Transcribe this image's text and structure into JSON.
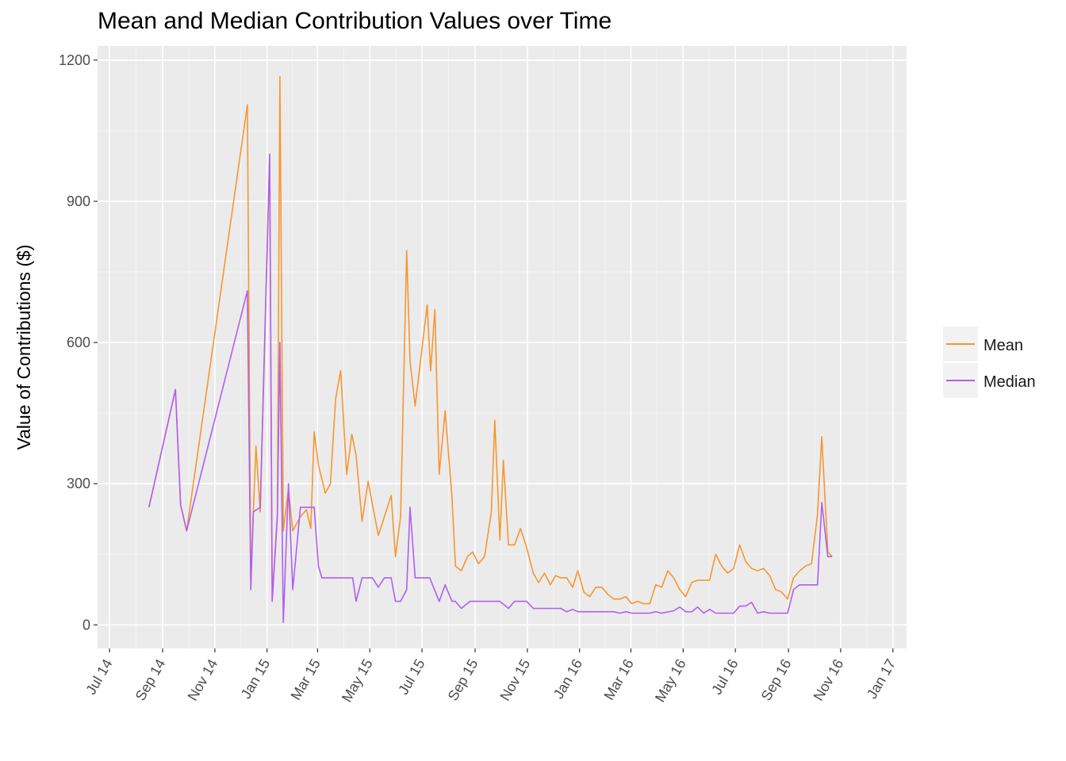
{
  "chart_data": {
    "type": "line",
    "title": "Mean and Median Contribution Values over Time",
    "xlabel": "",
    "ylabel": "Value of Contributions ($)",
    "xlim": [
      "2014-06-17",
      "2017-01-17"
    ],
    "ylim": [
      -50,
      1230
    ],
    "y_ticks": [
      0,
      300,
      600,
      900,
      1200
    ],
    "x_ticks": [
      {
        "date": "2014-07-01",
        "label": "Jul 14"
      },
      {
        "date": "2014-09-01",
        "label": "Sep 14"
      },
      {
        "date": "2014-11-01",
        "label": "Nov 14"
      },
      {
        "date": "2015-01-01",
        "label": "Jan 15"
      },
      {
        "date": "2015-03-01",
        "label": "Mar 15"
      },
      {
        "date": "2015-05-01",
        "label": "May 15"
      },
      {
        "date": "2015-07-01",
        "label": "Jul 15"
      },
      {
        "date": "2015-09-01",
        "label": "Sep 15"
      },
      {
        "date": "2015-11-01",
        "label": "Nov 15"
      },
      {
        "date": "2016-01-01",
        "label": "Jan 16"
      },
      {
        "date": "2016-03-01",
        "label": "Mar 16"
      },
      {
        "date": "2016-05-01",
        "label": "May 16"
      },
      {
        "date": "2016-07-01",
        "label": "Jul 16"
      },
      {
        "date": "2016-09-01",
        "label": "Sep 16"
      },
      {
        "date": "2016-11-01",
        "label": "Nov 16"
      },
      {
        "date": "2017-01-01",
        "label": "Jan 17"
      }
    ],
    "grid": true,
    "legend_position": "right",
    "series": [
      {
        "name": "Mean",
        "color": "#F8962F",
        "points": [
          [
            "2014-08-16",
            250
          ],
          [
            "2014-09-16",
            500
          ],
          [
            "2014-09-22",
            255
          ],
          [
            "2014-09-29",
            200
          ],
          [
            "2014-12-09",
            1105
          ],
          [
            "2014-12-13",
            100
          ],
          [
            "2014-12-16",
            240
          ],
          [
            "2014-12-19",
            380
          ],
          [
            "2014-12-24",
            240
          ],
          [
            "2015-01-04",
            1000
          ],
          [
            "2015-01-07",
            55
          ],
          [
            "2015-01-13",
            235
          ],
          [
            "2015-01-16",
            1165
          ],
          [
            "2015-01-20",
            200
          ],
          [
            "2015-01-26",
            290
          ],
          [
            "2015-01-31",
            200
          ],
          [
            "2015-02-09",
            230
          ],
          [
            "2015-02-16",
            245
          ],
          [
            "2015-02-21",
            205
          ],
          [
            "2015-02-25",
            410
          ],
          [
            "2015-03-02",
            340
          ],
          [
            "2015-03-10",
            280
          ],
          [
            "2015-03-16",
            300
          ],
          [
            "2015-03-22",
            480
          ],
          [
            "2015-03-28",
            540
          ],
          [
            "2015-04-04",
            320
          ],
          [
            "2015-04-10",
            405
          ],
          [
            "2015-04-15",
            360
          ],
          [
            "2015-04-22",
            220
          ],
          [
            "2015-04-29",
            305
          ],
          [
            "2015-05-11",
            190
          ],
          [
            "2015-05-26",
            275
          ],
          [
            "2015-05-31",
            145
          ],
          [
            "2015-06-06",
            230
          ],
          [
            "2015-06-13",
            795
          ],
          [
            "2015-06-17",
            560
          ],
          [
            "2015-06-23",
            465
          ],
          [
            "2015-07-07",
            680
          ],
          [
            "2015-07-11",
            540
          ],
          [
            "2015-07-16",
            670
          ],
          [
            "2015-07-21",
            320
          ],
          [
            "2015-07-28",
            455
          ],
          [
            "2015-08-05",
            270
          ],
          [
            "2015-08-09",
            125
          ],
          [
            "2015-08-16",
            115
          ],
          [
            "2015-08-23",
            145
          ],
          [
            "2015-08-29",
            155
          ],
          [
            "2015-09-05",
            130
          ],
          [
            "2015-09-12",
            145
          ],
          [
            "2015-09-20",
            240
          ],
          [
            "2015-09-24",
            435
          ],
          [
            "2015-09-30",
            180
          ],
          [
            "2015-10-04",
            350
          ],
          [
            "2015-10-10",
            170
          ],
          [
            "2015-10-17",
            170
          ],
          [
            "2015-10-24",
            205
          ],
          [
            "2015-10-31",
            165
          ],
          [
            "2015-11-08",
            110
          ],
          [
            "2015-11-14",
            90
          ],
          [
            "2015-11-21",
            110
          ],
          [
            "2015-11-28",
            85
          ],
          [
            "2015-12-04",
            105
          ],
          [
            "2015-12-10",
            100
          ],
          [
            "2015-12-17",
            100
          ],
          [
            "2015-12-24",
            80
          ],
          [
            "2015-12-30",
            115
          ],
          [
            "2016-01-06",
            70
          ],
          [
            "2016-01-13",
            60
          ],
          [
            "2016-01-20",
            80
          ],
          [
            "2016-01-27",
            80
          ],
          [
            "2016-02-03",
            65
          ],
          [
            "2016-02-10",
            55
          ],
          [
            "2016-02-17",
            55
          ],
          [
            "2016-02-24",
            60
          ],
          [
            "2016-03-02",
            45
          ],
          [
            "2016-03-09",
            50
          ],
          [
            "2016-03-16",
            45
          ],
          [
            "2016-03-23",
            45
          ],
          [
            "2016-03-30",
            85
          ],
          [
            "2016-04-06",
            80
          ],
          [
            "2016-04-13",
            115
          ],
          [
            "2016-04-20",
            100
          ],
          [
            "2016-04-27",
            75
          ],
          [
            "2016-05-04",
            60
          ],
          [
            "2016-05-11",
            90
          ],
          [
            "2016-05-18",
            95
          ],
          [
            "2016-05-25",
            95
          ],
          [
            "2016-06-01",
            95
          ],
          [
            "2016-06-08",
            150
          ],
          [
            "2016-06-15",
            125
          ],
          [
            "2016-06-22",
            110
          ],
          [
            "2016-06-29",
            120
          ],
          [
            "2016-07-06",
            170
          ],
          [
            "2016-07-13",
            135
          ],
          [
            "2016-07-20",
            120
          ],
          [
            "2016-07-27",
            115
          ],
          [
            "2016-08-03",
            120
          ],
          [
            "2016-08-10",
            105
          ],
          [
            "2016-08-17",
            75
          ],
          [
            "2016-08-24",
            70
          ],
          [
            "2016-08-31",
            55
          ],
          [
            "2016-09-07",
            100
          ],
          [
            "2016-09-14",
            115
          ],
          [
            "2016-09-21",
            125
          ],
          [
            "2016-09-28",
            130
          ],
          [
            "2016-10-05",
            235
          ],
          [
            "2016-10-10",
            400
          ],
          [
            "2016-10-17",
            155
          ],
          [
            "2016-10-22",
            145
          ]
        ]
      },
      {
        "name": "Median",
        "color": "#B05FF0",
        "points": [
          [
            "2014-08-16",
            250
          ],
          [
            "2014-09-16",
            500
          ],
          [
            "2014-09-22",
            255
          ],
          [
            "2014-09-29",
            200
          ],
          [
            "2014-12-09",
            710
          ],
          [
            "2014-12-13",
            75
          ],
          [
            "2014-12-16",
            240
          ],
          [
            "2014-12-24",
            250
          ],
          [
            "2015-01-04",
            1000
          ],
          [
            "2015-01-07",
            50
          ],
          [
            "2015-01-13",
            230
          ],
          [
            "2015-01-16",
            600
          ],
          [
            "2015-01-20",
            5
          ],
          [
            "2015-01-26",
            300
          ],
          [
            "2015-01-31",
            75
          ],
          [
            "2015-02-09",
            250
          ],
          [
            "2015-02-25",
            250
          ],
          [
            "2015-03-02",
            125
          ],
          [
            "2015-03-06",
            100
          ],
          [
            "2015-04-11",
            100
          ],
          [
            "2015-04-15",
            50
          ],
          [
            "2015-04-22",
            100
          ],
          [
            "2015-05-04",
            100
          ],
          [
            "2015-05-11",
            80
          ],
          [
            "2015-05-18",
            100
          ],
          [
            "2015-05-26",
            100
          ],
          [
            "2015-05-31",
            50
          ],
          [
            "2015-06-06",
            50
          ],
          [
            "2015-06-13",
            75
          ],
          [
            "2015-06-17",
            250
          ],
          [
            "2015-06-23",
            100
          ],
          [
            "2015-07-10",
            100
          ],
          [
            "2015-07-21",
            50
          ],
          [
            "2015-07-28",
            85
          ],
          [
            "2015-08-05",
            50
          ],
          [
            "2015-08-09",
            50
          ],
          [
            "2015-08-16",
            35
          ],
          [
            "2015-08-26",
            50
          ],
          [
            "2015-09-30",
            50
          ],
          [
            "2015-10-10",
            35
          ],
          [
            "2015-10-17",
            50
          ],
          [
            "2015-10-31",
            50
          ],
          [
            "2015-11-08",
            35
          ],
          [
            "2015-12-10",
            35
          ],
          [
            "2015-12-17",
            28
          ],
          [
            "2015-12-24",
            33
          ],
          [
            "2015-12-30",
            28
          ],
          [
            "2016-02-10",
            28
          ],
          [
            "2016-02-17",
            25
          ],
          [
            "2016-02-24",
            28
          ],
          [
            "2016-03-02",
            25
          ],
          [
            "2016-03-23",
            25
          ],
          [
            "2016-03-30",
            28
          ],
          [
            "2016-04-06",
            25
          ],
          [
            "2016-04-20",
            30
          ],
          [
            "2016-04-27",
            38
          ],
          [
            "2016-05-04",
            28
          ],
          [
            "2016-05-11",
            28
          ],
          [
            "2016-05-18",
            38
          ],
          [
            "2016-05-25",
            25
          ],
          [
            "2016-06-01",
            33
          ],
          [
            "2016-06-08",
            25
          ],
          [
            "2016-06-29",
            25
          ],
          [
            "2016-07-06",
            40
          ],
          [
            "2016-07-13",
            40
          ],
          [
            "2016-07-20",
            48
          ],
          [
            "2016-07-27",
            25
          ],
          [
            "2016-08-03",
            28
          ],
          [
            "2016-08-10",
            25
          ],
          [
            "2016-08-31",
            25
          ],
          [
            "2016-09-07",
            75
          ],
          [
            "2016-09-14",
            85
          ],
          [
            "2016-09-21",
            85
          ],
          [
            "2016-09-28",
            85
          ],
          [
            "2016-10-05",
            85
          ],
          [
            "2016-10-10",
            260
          ],
          [
            "2016-10-17",
            145
          ],
          [
            "2016-10-22",
            145
          ]
        ]
      }
    ]
  }
}
